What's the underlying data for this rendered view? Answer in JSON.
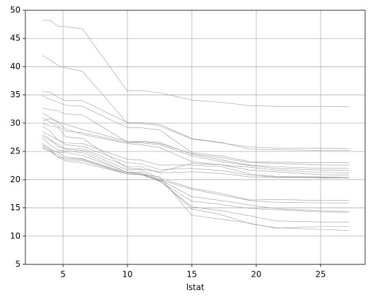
{
  "chart_data": {
    "type": "line",
    "xlabel": "lstat",
    "color": "#999999",
    "grid": true,
    "xlim": [
      2.07,
      28.46
    ],
    "ylim": [
      5,
      50
    ],
    "xticks": [
      5,
      10,
      15,
      20,
      25
    ],
    "yticks": [
      5,
      10,
      15,
      20,
      25,
      30,
      35,
      40,
      45,
      50
    ],
    "x": [
      3.4,
      4.0,
      4.6,
      5.2,
      6.5,
      10.0,
      11.0,
      12.5,
      15.0,
      17.3,
      19.5,
      21.5,
      25.0,
      27.2
    ],
    "series": [
      {
        "values": [
          48.2,
          48.2,
          47.2,
          47.1,
          46.7,
          35.7,
          35.8,
          35.4,
          34.1,
          33.7,
          33.1,
          33.0,
          33.0,
          32.9
        ]
      },
      {
        "values": [
          42.0,
          41.2,
          40.2,
          39.8,
          39.2,
          30.0,
          30.0,
          29.5,
          27.2,
          26.5,
          25.8,
          25.6,
          25.6,
          25.5
        ]
      },
      {
        "values": [
          35.6,
          35.5,
          34.6,
          34.0,
          34.0,
          30.1,
          30.1,
          29.8,
          27.3,
          26.6,
          25.4,
          25.3,
          25.2,
          25.2
        ]
      },
      {
        "values": [
          34.9,
          34.2,
          33.7,
          33.2,
          33.0,
          29.2,
          29.2,
          28.8,
          24.8,
          24.2,
          23.2,
          23.1,
          23.0,
          23.0
        ]
      },
      {
        "values": [
          32.7,
          32.4,
          32.2,
          31.6,
          31.5,
          26.6,
          26.7,
          26.4,
          24.6,
          23.9,
          23.0,
          22.9,
          22.6,
          22.6
        ]
      },
      {
        "values": [
          31.8,
          31.0,
          30.3,
          29.8,
          28.9,
          26.8,
          26.8,
          26.6,
          24.5,
          23.5,
          22.6,
          22.3,
          22.0,
          22.0
        ]
      },
      {
        "values": [
          31.0,
          30.2,
          29.5,
          28.6,
          28.3,
          26.6,
          26.5,
          26.2,
          24.2,
          23.2,
          22.5,
          22.0,
          21.7,
          21.7
        ]
      },
      {
        "values": [
          30.4,
          30.8,
          30.1,
          29.0,
          28.0,
          26.4,
          26.2,
          25.7,
          23.2,
          22.6,
          22.2,
          21.7,
          21.3,
          21.2
        ]
      },
      {
        "values": [
          30.0,
          29.5,
          29.3,
          27.6,
          27.3,
          22.0,
          21.9,
          21.4,
          22.9,
          22.6,
          21.7,
          21.4,
          20.9,
          20.8
        ]
      },
      {
        "values": [
          29.5,
          28.6,
          27.0,
          26.5,
          26.4,
          23.6,
          23.5,
          22.6,
          22.6,
          22.3,
          21.0,
          20.6,
          20.5,
          20.4
        ]
      },
      {
        "values": [
          28.5,
          27.8,
          27.0,
          26.2,
          25.9,
          23.0,
          22.8,
          21.8,
          22.0,
          21.6,
          20.8,
          20.5,
          20.4,
          20.3
        ]
      },
      {
        "values": [
          27.7,
          26.9,
          26.3,
          25.5,
          25.5,
          22.3,
          22.3,
          21.2,
          21.4,
          21.1,
          20.5,
          20.4,
          20.3,
          20.3
        ]
      },
      {
        "values": [
          28.0,
          27.2,
          25.9,
          25.4,
          25.2,
          21.7,
          21.8,
          20.3,
          18.5,
          17.6,
          16.4,
          16.5,
          16.3,
          16.3
        ]
      },
      {
        "values": [
          27.3,
          26.2,
          25.2,
          25.1,
          24.8,
          21.3,
          21.4,
          20.0,
          18.3,
          17.3,
          16.3,
          16.0,
          15.9,
          15.8
        ]
      },
      {
        "values": [
          26.5,
          25.5,
          24.8,
          24.8,
          24.3,
          21.3,
          21.1,
          20.0,
          17.0,
          16.3,
          15.5,
          14.9,
          14.5,
          14.4
        ]
      },
      {
        "values": [
          26.0,
          25.3,
          24.9,
          24.0,
          23.7,
          21.2,
          21.1,
          19.7,
          16.2,
          15.6,
          14.9,
          14.7,
          14.3,
          14.2
        ]
      },
      {
        "values": [
          25.6,
          25.0,
          24.5,
          23.5,
          23.4,
          21.0,
          20.9,
          19.8,
          15.2,
          14.5,
          13.6,
          12.7,
          12.5,
          12.5
        ]
      },
      {
        "values": [
          26.2,
          25.2,
          24.0,
          23.3,
          23.0,
          21.0,
          21.0,
          20.5,
          13.7,
          13.0,
          12.3,
          11.4,
          11.7,
          11.7
        ]
      },
      {
        "values": [
          25.7,
          25.0,
          24.0,
          23.8,
          23.6,
          21.0,
          20.9,
          19.9,
          14.8,
          13.8,
          12.2,
          11.5,
          11.2,
          11.0
        ]
      }
    ]
  }
}
